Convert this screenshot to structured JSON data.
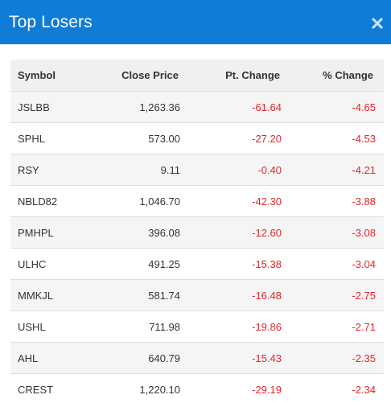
{
  "modal": {
    "title": "Top Losers",
    "close_icon": "close-icon"
  },
  "table": {
    "headers": {
      "symbol": "Symbol",
      "close_price": "Close Price",
      "pt_change": "Pt. Change",
      "pct_change": "% Change"
    },
    "rows": [
      {
        "symbol": "JSLBB",
        "close_price": "1,263.36",
        "pt_change": "-61.64",
        "pct_change": "-4.65"
      },
      {
        "symbol": "SPHL",
        "close_price": "573.00",
        "pt_change": "-27.20",
        "pct_change": "-4.53"
      },
      {
        "symbol": "RSY",
        "close_price": "9.11",
        "pt_change": "-0.40",
        "pct_change": "-4.21"
      },
      {
        "symbol": "NBLD82",
        "close_price": "1,046.70",
        "pt_change": "-42.30",
        "pct_change": "-3.88"
      },
      {
        "symbol": "PMHPL",
        "close_price": "396.08",
        "pt_change": "-12.60",
        "pct_change": "-3.08"
      },
      {
        "symbol": "ULHC",
        "close_price": "491.25",
        "pt_change": "-15.38",
        "pct_change": "-3.04"
      },
      {
        "symbol": "MMKJL",
        "close_price": "581.74",
        "pt_change": "-16.48",
        "pct_change": "-2.75"
      },
      {
        "symbol": "USHL",
        "close_price": "711.98",
        "pt_change": "-19.86",
        "pct_change": "-2.71"
      },
      {
        "symbol": "AHL",
        "close_price": "640.79",
        "pt_change": "-15.43",
        "pct_change": "-2.35"
      },
      {
        "symbol": "CREST",
        "close_price": "1,220.10",
        "pt_change": "-29.19",
        "pct_change": "-2.34"
      }
    ]
  },
  "colors": {
    "header_bg": "#0f7cd6",
    "negative": "#e0262b",
    "table_header_bg": "#f0f0f0",
    "row_stripe": "#f5f5f5"
  }
}
